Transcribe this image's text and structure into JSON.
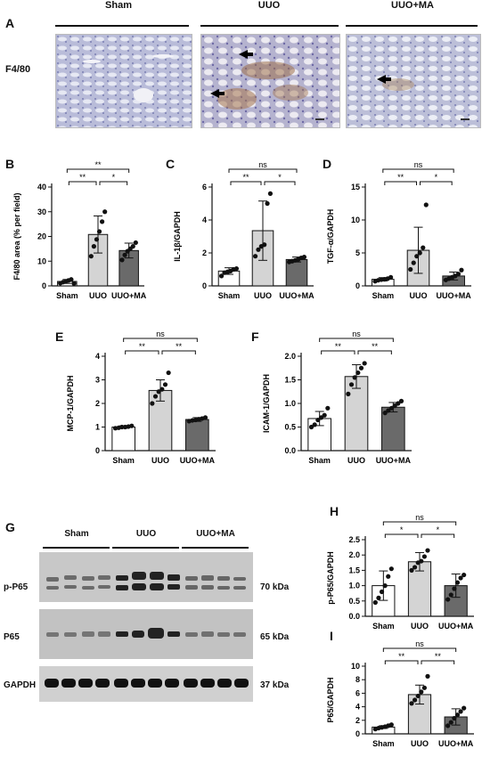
{
  "panel_A": {
    "letter": "A",
    "groups": [
      "Sham",
      "UUO",
      "UUO+MA"
    ],
    "row_label": "F4/80"
  },
  "panel_G": {
    "letter": "G",
    "groups": [
      "Sham",
      "UUO",
      "UUO+MA"
    ],
    "rows": [
      {
        "label": "p-P65",
        "kda": "70 kDa"
      },
      {
        "label": "P65",
        "kda": "65 kDa"
      },
      {
        "label": "GAPDH",
        "kda": "37 kDa"
      }
    ]
  },
  "colors": {
    "sham": "#ffffff",
    "uuo": "#d4d4d4",
    "uuoma": "#6a6a6a"
  },
  "chart_data": [
    {
      "id": "B",
      "letter": "B",
      "type": "bar",
      "categories": [
        "Sham",
        "UUO",
        "UUO+MA"
      ],
      "ylabel": "F4/80 area (% per field)",
      "ylim": [
        0,
        40
      ],
      "yticks": [
        0,
        10,
        20,
        30,
        40
      ],
      "ytick_labels": [
        "0",
        "10",
        "20",
        "30",
        "40"
      ],
      "values": [
        1.8,
        20.8,
        14.3
      ],
      "errors": [
        0.8,
        7.5,
        3.0
      ],
      "points": [
        [
          1.1,
          1.5,
          1.8,
          2.2,
          2.6,
          1.0
        ],
        [
          12.0,
          16.0,
          18.8,
          22.0,
          26.0,
          30.0
        ],
        [
          10.5,
          12.5,
          14.0,
          15.0,
          16.0,
          17.5
        ]
      ],
      "sig": [
        {
          "from": 0,
          "to": 2,
          "label": "**",
          "level": 2
        },
        {
          "from": 0,
          "to": 1,
          "label": "**",
          "level": 1
        },
        {
          "from": 1,
          "to": 2,
          "label": "*",
          "level": 1
        }
      ]
    },
    {
      "id": "C",
      "letter": "C",
      "type": "bar",
      "categories": [
        "Sham",
        "UUO",
        "UUO+MA"
      ],
      "ylabel": "IL-1β/GAPDH",
      "ylim": [
        0,
        6
      ],
      "yticks": [
        0,
        2,
        4,
        6
      ],
      "ytick_labels": [
        "0",
        "2",
        "4",
        "6"
      ],
      "values": [
        0.9,
        3.35,
        1.6
      ],
      "errors": [
        0.2,
        1.8,
        0.15
      ],
      "points": [
        [
          0.6,
          0.8,
          0.85,
          0.9,
          1.0,
          1.05
        ],
        [
          1.8,
          2.2,
          2.4,
          2.5,
          5.0,
          5.6
        ],
        [
          1.45,
          1.5,
          1.55,
          1.6,
          1.7,
          1.75
        ]
      ],
      "sig": [
        {
          "from": 0,
          "to": 2,
          "label": "ns",
          "level": 2
        },
        {
          "from": 0,
          "to": 1,
          "label": "**",
          "level": 1
        },
        {
          "from": 1,
          "to": 2,
          "label": "*",
          "level": 1
        }
      ]
    },
    {
      "id": "D",
      "letter": "D",
      "type": "bar",
      "categories": [
        "Sham",
        "UUO",
        "UUO+MA"
      ],
      "ylabel": "TGF-α/GAPDH",
      "ylim": [
        0,
        15
      ],
      "yticks": [
        0,
        5,
        10,
        15
      ],
      "ytick_labels": [
        "0",
        "5",
        "10",
        "15"
      ],
      "values": [
        1.0,
        5.4,
        1.5
      ],
      "errors": [
        0.25,
        3.5,
        0.6
      ],
      "points": [
        [
          0.7,
          0.85,
          0.95,
          1.0,
          1.1,
          1.3
        ],
        [
          2.5,
          3.5,
          4.5,
          5.0,
          5.8,
          12.3
        ],
        [
          0.9,
          1.1,
          1.3,
          1.5,
          1.8,
          2.4
        ]
      ],
      "sig": [
        {
          "from": 0,
          "to": 2,
          "label": "ns",
          "level": 2
        },
        {
          "from": 0,
          "to": 1,
          "label": "**",
          "level": 1
        },
        {
          "from": 1,
          "to": 2,
          "label": "*",
          "level": 1
        }
      ]
    },
    {
      "id": "E",
      "letter": "E",
      "type": "bar",
      "categories": [
        "Sham",
        "UUO",
        "UUO+MA"
      ],
      "ylabel": "MCP-1/GAPDH",
      "ylim": [
        0,
        4
      ],
      "yticks": [
        0,
        1,
        2,
        3,
        4
      ],
      "ytick_labels": [
        "0",
        "1",
        "2",
        "3",
        "4"
      ],
      "values": [
        1.0,
        2.55,
        1.32
      ],
      "errors": [
        0.05,
        0.45,
        0.08
      ],
      "points": [
        [
          0.95,
          0.97,
          1.0,
          1.0,
          1.02,
          1.05
        ],
        [
          2.0,
          2.3,
          2.5,
          2.6,
          2.8,
          3.3
        ],
        [
          1.25,
          1.28,
          1.3,
          1.33,
          1.36,
          1.4
        ]
      ],
      "sig": [
        {
          "from": 0,
          "to": 2,
          "label": "ns",
          "level": 2
        },
        {
          "from": 0,
          "to": 1,
          "label": "**",
          "level": 1
        },
        {
          "from": 1,
          "to": 2,
          "label": "**",
          "level": 1
        }
      ]
    },
    {
      "id": "F",
      "letter": "F",
      "type": "bar",
      "categories": [
        "Sham",
        "UUO",
        "UUO+MA"
      ],
      "ylabel": "ICAM-1/GAPDH",
      "ylim": [
        0,
        2.0
      ],
      "yticks": [
        0,
        0.5,
        1.0,
        1.5,
        2.0
      ],
      "ytick_labels": [
        "0.0",
        "0.5",
        "1.0",
        "1.5",
        "2.0"
      ],
      "values": [
        0.68,
        1.57,
        0.92
      ],
      "errors": [
        0.15,
        0.25,
        0.1
      ],
      "points": [
        [
          0.5,
          0.55,
          0.65,
          0.7,
          0.75,
          0.9
        ],
        [
          1.2,
          1.4,
          1.55,
          1.65,
          1.75,
          1.85
        ],
        [
          0.8,
          0.85,
          0.9,
          0.95,
          1.0,
          1.05
        ]
      ],
      "sig": [
        {
          "from": 0,
          "to": 2,
          "label": "ns",
          "level": 2
        },
        {
          "from": 0,
          "to": 1,
          "label": "**",
          "level": 1
        },
        {
          "from": 1,
          "to": 2,
          "label": "**",
          "level": 1
        }
      ]
    },
    {
      "id": "H",
      "letter": "H",
      "type": "bar",
      "categories": [
        "Sham",
        "UUO",
        "UUO+MA"
      ],
      "ylabel": "p-P65/GAPDH",
      "ylim": [
        0,
        2.5
      ],
      "yticks": [
        0,
        0.5,
        1.0,
        1.5,
        2.0,
        2.5
      ],
      "ytick_labels": [
        "0.0",
        "0.5",
        "1.0",
        "1.5",
        "2.0",
        "2.5"
      ],
      "values": [
        1.0,
        1.78,
        1.0
      ],
      "errors": [
        0.48,
        0.3,
        0.38
      ],
      "points": [
        [
          0.45,
          0.6,
          0.8,
          1.0,
          1.3,
          1.55
        ],
        [
          1.5,
          1.6,
          1.75,
          1.8,
          1.95,
          2.15
        ],
        [
          0.55,
          0.7,
          0.9,
          1.1,
          1.25,
          1.35
        ]
      ],
      "sig": [
        {
          "from": 0,
          "to": 2,
          "label": "ns",
          "level": 2
        },
        {
          "from": 0,
          "to": 1,
          "label": "*",
          "level": 1
        },
        {
          "from": 1,
          "to": 2,
          "label": "*",
          "level": 1
        }
      ]
    },
    {
      "id": "I",
      "letter": "I",
      "type": "bar",
      "categories": [
        "Sham",
        "UUO",
        "UUO+MA"
      ],
      "ylabel": "P65/GAPDH",
      "ylim": [
        0,
        10
      ],
      "yticks": [
        0,
        2,
        4,
        6,
        8,
        10
      ],
      "ytick_labels": [
        "0",
        "2",
        "4",
        "6",
        "8",
        "10"
      ],
      "values": [
        1.0,
        5.8,
        2.5
      ],
      "errors": [
        0.2,
        1.4,
        1.2
      ],
      "points": [
        [
          0.7,
          0.85,
          0.95,
          1.05,
          1.2,
          1.35
        ],
        [
          4.5,
          5.0,
          5.6,
          6.2,
          6.8,
          8.5
        ],
        [
          1.2,
          1.7,
          2.3,
          2.8,
          3.3,
          3.8
        ]
      ],
      "sig": [
        {
          "from": 0,
          "to": 2,
          "label": "ns",
          "level": 2
        },
        {
          "from": 0,
          "to": 1,
          "label": "**",
          "level": 1
        },
        {
          "from": 1,
          "to": 2,
          "label": "**",
          "level": 1
        }
      ]
    }
  ]
}
